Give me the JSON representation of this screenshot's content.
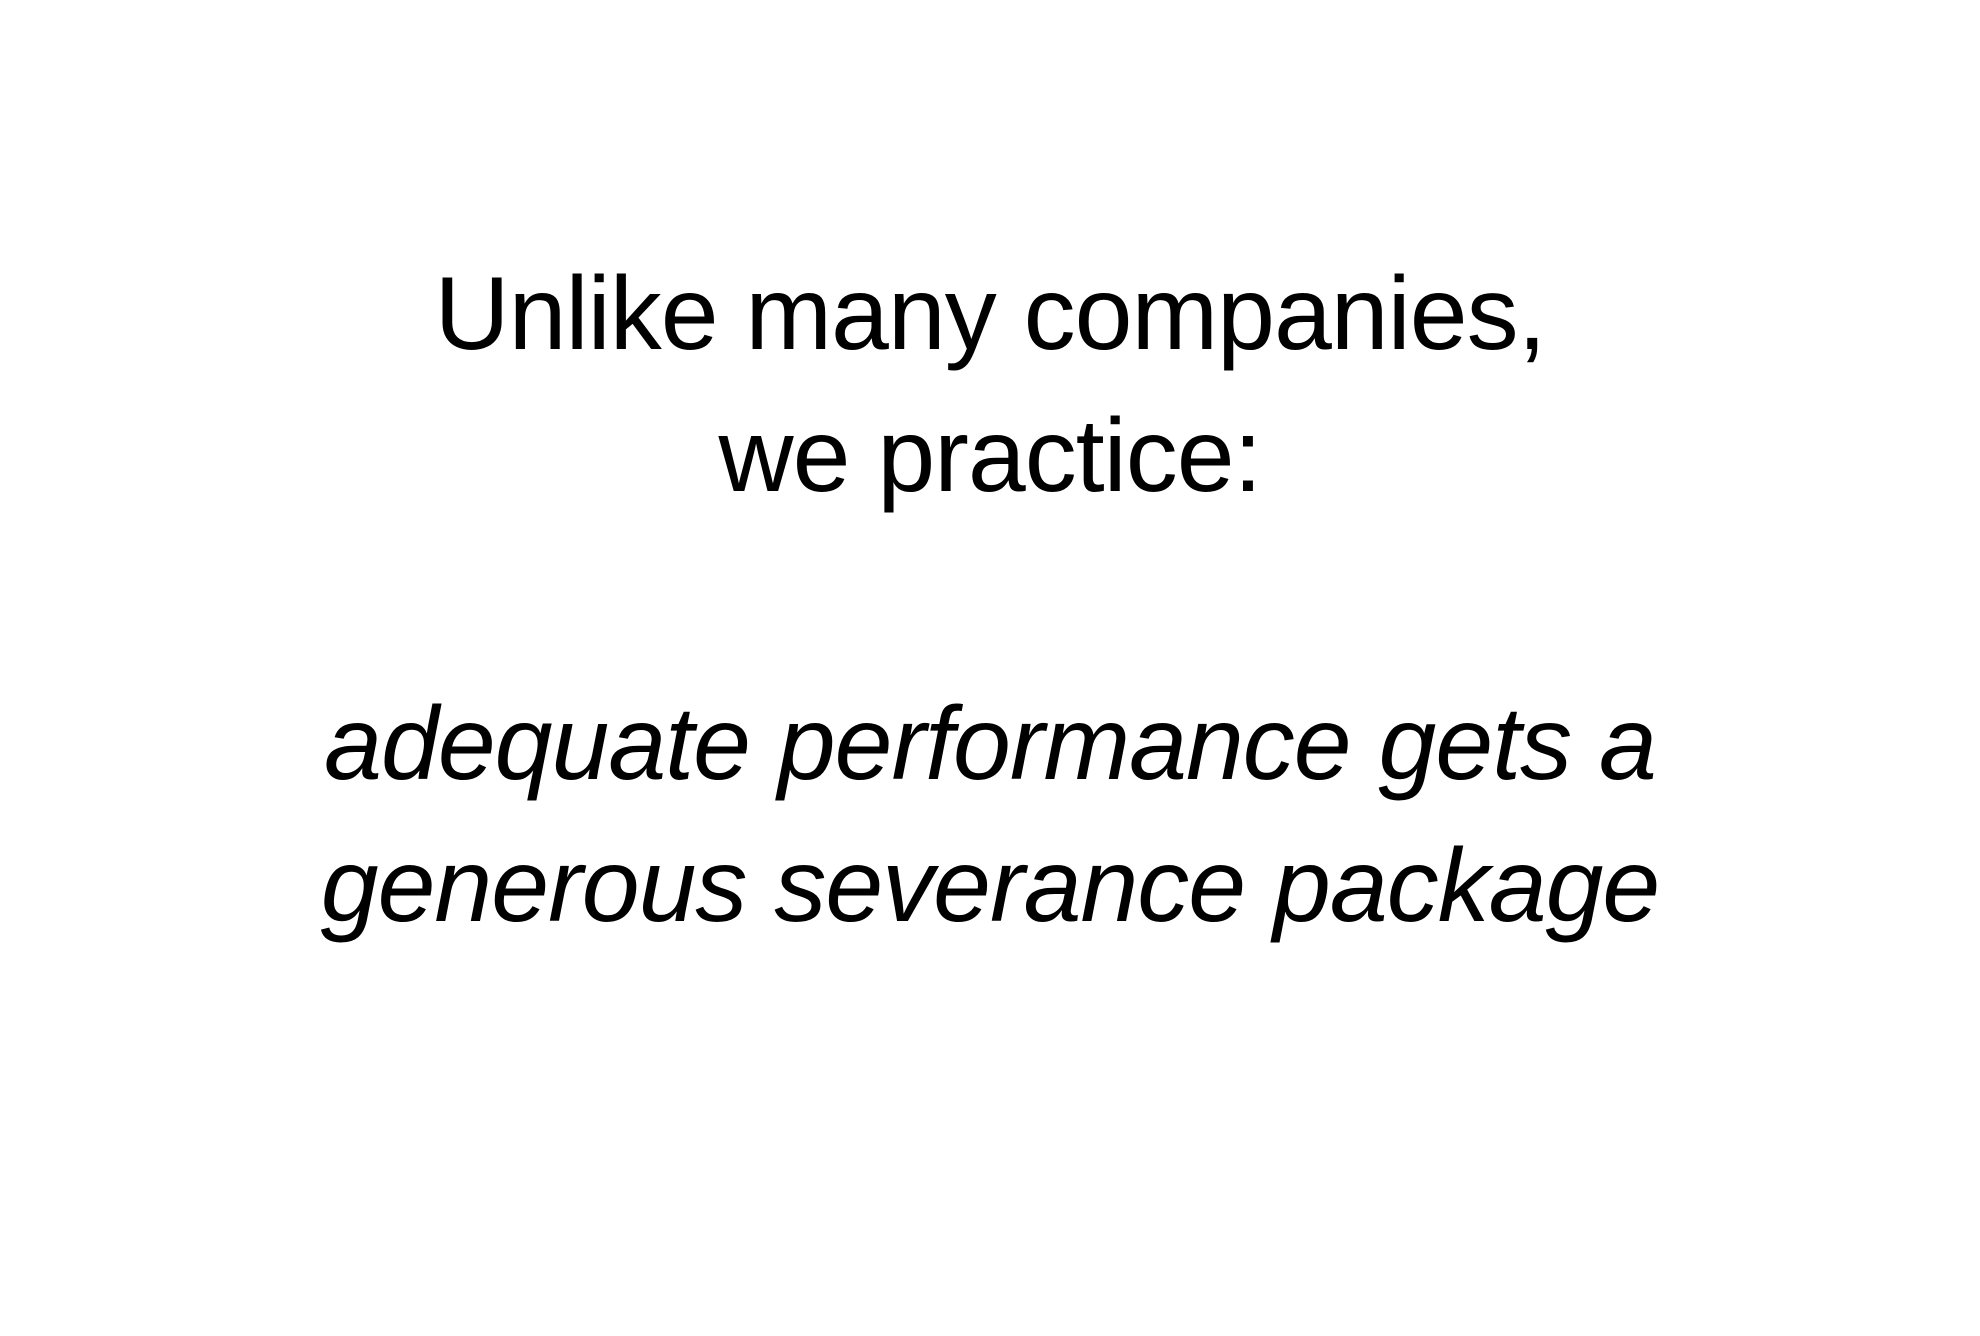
{
  "slide": {
    "heading_lines": [
      "Unlike many companies,",
      "we practice:"
    ],
    "emphasis_lines": [
      "adequate performance gets a",
      "generous severance package"
    ]
  }
}
